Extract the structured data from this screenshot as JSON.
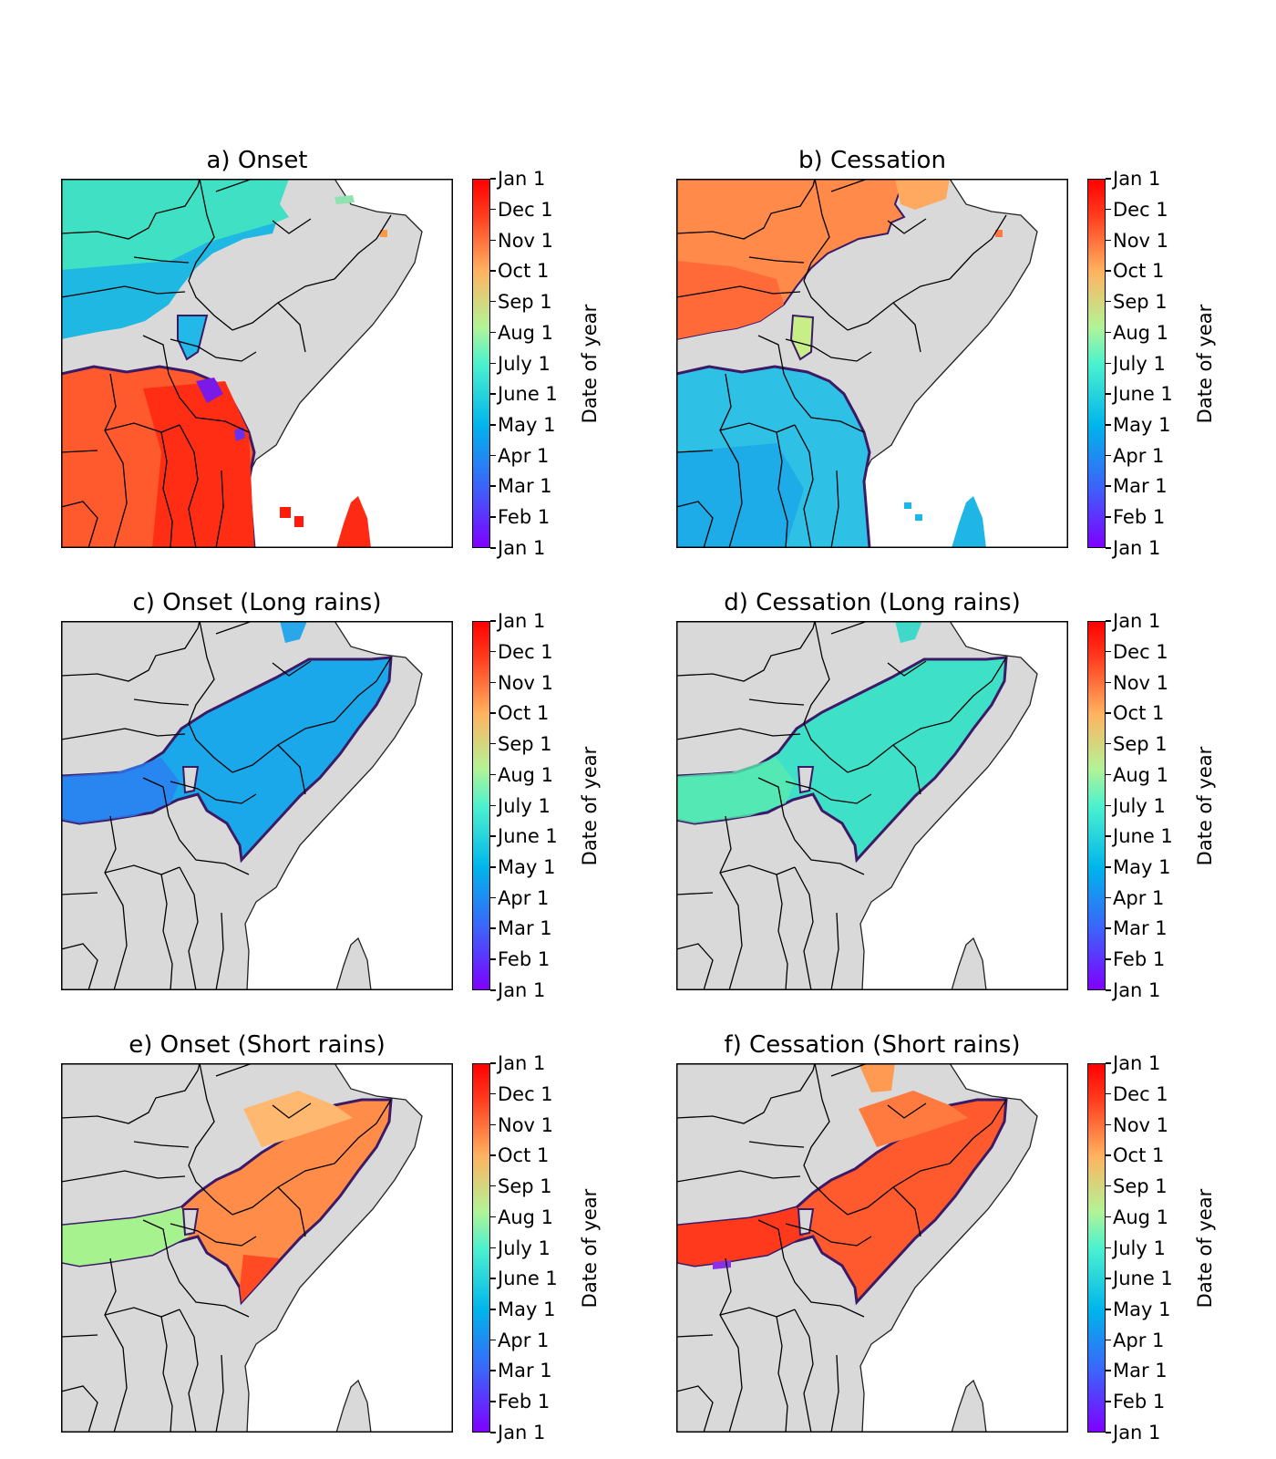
{
  "colorbar": {
    "label": "Date of year",
    "ticks": [
      "Jan 1",
      "Feb 1",
      "Mar 1",
      "Apr 1",
      "May 1",
      "June 1",
      "July 1",
      "Aug 1",
      "Sep 1",
      "Oct 1",
      "Nov 1",
      "Dec 1",
      "Jan 1"
    ],
    "colormap": [
      "#7f00ff",
      "#3e61fa",
      "#00b4eb",
      "#4cf2ce",
      "#b3f396",
      "#ffb360",
      "#ff3e1f",
      "#ff0000"
    ]
  },
  "colors": {
    "land": "#d9d9d9",
    "ocean": "#ffffff",
    "border": "#000000",
    "mask_edge": "#3b1a66"
  },
  "panels": [
    {
      "title": "a) Onset",
      "field": "onset_all"
    },
    {
      "title": "b) Cessation",
      "field": "cessation_all"
    },
    {
      "title": "c) Onset (Long rains)",
      "field": "onset_long_rains"
    },
    {
      "title": "d) Cessation (Long rains)",
      "field": "cessation_long_rains"
    },
    {
      "title": "e) Onset (Short rains)",
      "field": "onset_short_rains"
    },
    {
      "title": "f) Cessation (Short rains)",
      "field": "cessation_short_rains"
    }
  ]
}
